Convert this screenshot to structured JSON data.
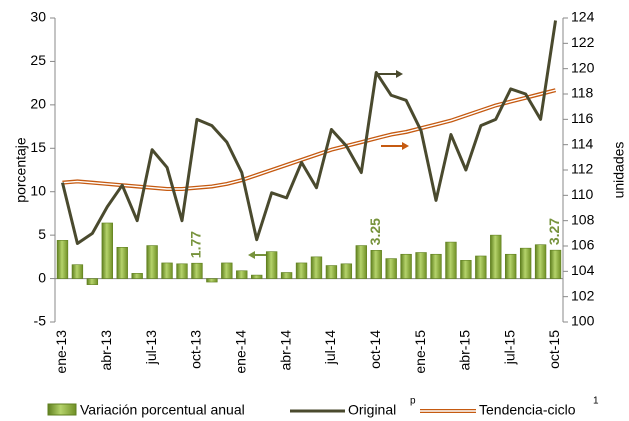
{
  "chart_data": {
    "type": "bar-line",
    "y_label": "porcentaje",
    "y2_label": "unidades",
    "categories": [
      "ene-13",
      null,
      null,
      "abr-13",
      null,
      null,
      "jul-13",
      null,
      null,
      "oct-13",
      null,
      null,
      "ene-14",
      null,
      null,
      "abr-14",
      null,
      null,
      "jul-14",
      null,
      null,
      "oct-14",
      null,
      null,
      "ene-15",
      null,
      null,
      "abr-15",
      null,
      null,
      "jul-15",
      null,
      null,
      "oct-15"
    ],
    "series": [
      {
        "name": "Variación porcentual anual",
        "type": "bar",
        "axis": "y",
        "color": "#8db33a",
        "values": [
          4.4,
          1.6,
          -0.7,
          6.4,
          3.6,
          0.6,
          3.8,
          1.8,
          1.7,
          1.77,
          -0.4,
          1.8,
          0.9,
          0.4,
          3.1,
          0.7,
          1.8,
          2.5,
          1.5,
          1.7,
          3.8,
          3.25,
          2.3,
          2.8,
          3.0,
          2.8,
          4.2,
          2.1,
          2.6,
          5.0,
          2.8,
          3.5,
          3.9,
          3.27
        ],
        "value_labels": [
          null,
          null,
          null,
          null,
          null,
          null,
          null,
          null,
          null,
          "1.77",
          null,
          null,
          null,
          null,
          null,
          null,
          null,
          null,
          null,
          null,
          null,
          "3.25",
          null,
          null,
          null,
          null,
          null,
          null,
          null,
          null,
          null,
          null,
          null,
          "3.27"
        ]
      },
      {
        "name": "Original",
        "superscript": "p",
        "type": "line",
        "axis": "y2",
        "color": "#4a4a2e",
        "values": [
          111.0,
          106.2,
          107.0,
          109.1,
          110.8,
          108.0,
          113.6,
          112.2,
          108.0,
          116.0,
          115.5,
          114.2,
          111.8,
          106.5,
          110.2,
          109.8,
          112.6,
          110.6,
          115.2,
          113.9,
          111.8,
          119.7,
          117.9,
          117.5,
          115.1,
          109.6,
          114.8,
          112.0,
          115.5,
          116.0,
          118.4,
          118.0,
          116.0,
          123.8
        ]
      },
      {
        "name": "Tendencia-ciclo",
        "superscript": "1",
        "type": "double-line",
        "axis": "y2",
        "color": "#c55a11",
        "values": [
          111.0,
          111.1,
          111.0,
          110.9,
          110.8,
          110.7,
          110.6,
          110.5,
          110.5,
          110.6,
          110.7,
          110.9,
          111.2,
          111.6,
          112.0,
          112.4,
          112.8,
          113.2,
          113.6,
          113.9,
          114.2,
          114.5,
          114.8,
          115.0,
          115.3,
          115.6,
          115.9,
          116.3,
          116.7,
          117.1,
          117.4,
          117.7,
          118.0,
          118.3
        ]
      }
    ],
    "ylim": [
      -5,
      30
    ],
    "yticks": [
      -5,
      0,
      5,
      10,
      15,
      20,
      25,
      30
    ],
    "y2lim": [
      100,
      124
    ],
    "y2ticks": [
      100,
      102,
      104,
      106,
      108,
      110,
      112,
      114,
      116,
      118,
      120,
      122,
      124
    ],
    "value_label_color": "#77933c",
    "grid": false
  }
}
